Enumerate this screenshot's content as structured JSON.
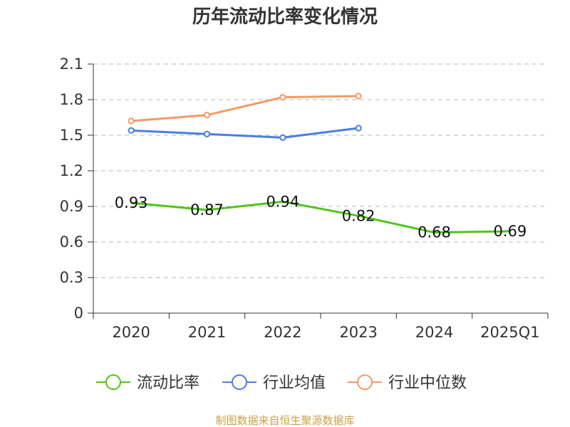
{
  "chart_data": {
    "type": "line",
    "title": "历年流动比率变化情况",
    "categories": [
      "2020",
      "2021",
      "2022",
      "2023",
      "2024",
      "2025Q1"
    ],
    "ylim": [
      0,
      2.1
    ],
    "yticks": [
      "0",
      "0.3",
      "0.6",
      "0.9",
      "1.2",
      "1.5",
      "1.8",
      "2.1"
    ],
    "grid": true,
    "legend_position": "bottom",
    "series": [
      {
        "name": "流动比率",
        "color": "#52c41a",
        "values": [
          0.93,
          0.87,
          0.94,
          0.82,
          0.68,
          0.69
        ],
        "data_labels": [
          "0.93",
          "0.87",
          "0.94",
          "0.82",
          "0.68",
          "0.69"
        ]
      },
      {
        "name": "行业均值",
        "color": "#4a7fe0",
        "values": [
          1.54,
          1.51,
          1.48,
          1.56,
          null,
          null
        ]
      },
      {
        "name": "行业中位数",
        "color": "#f59a66",
        "values": [
          1.62,
          1.67,
          1.82,
          1.83,
          null,
          null
        ]
      }
    ]
  },
  "source": {
    "text": "制图数据来自恒生聚源数据库",
    "color": "#c8a24a"
  }
}
